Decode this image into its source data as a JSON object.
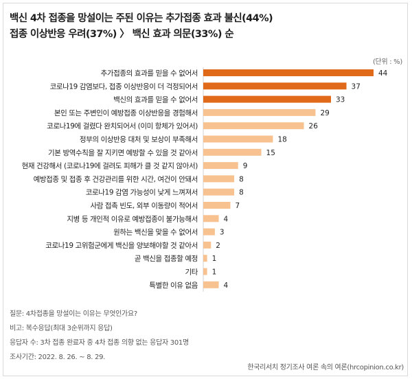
{
  "header": {
    "title_line1": "백신 4차 접종을 망설이는 주된 이유는 추가접종 효과 불신(44%)",
    "title_line2": "접종 이상반응 우려(37%) 〉 백신 효과 의문(33%) 순"
  },
  "unit_label": "(단위 : %)",
  "colors": {
    "dark_bar": "#e06a1a",
    "light_bar": "#f7c28f"
  },
  "chart_data": {
    "type": "bar",
    "orientation": "horizontal",
    "title": "백신 4차 접종을 망설이는 주된 이유는 추가접종 효과 불신(44%) 접종 이상반응 우려(37%) 〉 백신 효과 의문(33%) 순",
    "unit": "%",
    "xlim": [
      0,
      44
    ],
    "categories": [
      "추가접종의 효과를 믿을 수 없어서",
      "코로나19 감염보다, 접종 이상반응이 더 걱정되어서",
      "백신의 효과를 믿을 수 없어서",
      "본인 또는 주변인이 예방접종 이상반응을 경험해서",
      "코로나19에 걸렸다 완치되어서 (이미 항체가 있어서)",
      "정부의 이상반응 대처 및 보상이 부족해서",
      "기본 방역수칙을 잘 지키면 예방할 수 있을 것 같아서",
      "현재 건강해서 (코로나19에 걸려도 피해가 클 것 같지 않아서)",
      "예방접종 및 접종 후 건강관리를 위한 시간, 여건이 안돼서",
      "코로나19 감염 가능성이 낮게 느껴져서",
      "사람 접촉 빈도, 외부 이동량이 적어서",
      "지병 등 개인적 이유로 예방접종이 불가능해서",
      "원하는 백신을 맞을 수 없어서",
      "코로나19 고위험군에게 백신을 양보해야할 것 같아서",
      "곧 백신을 접종할 예정",
      "기타",
      "특별한 이유 없음"
    ],
    "values": [
      44,
      37,
      33,
      29,
      26,
      18,
      15,
      9,
      8,
      8,
      7,
      4,
      3,
      2,
      1,
      1,
      4
    ],
    "highlighted": [
      true,
      true,
      true,
      false,
      false,
      false,
      false,
      false,
      false,
      false,
      false,
      false,
      false,
      false,
      false,
      false,
      false
    ]
  },
  "notes": {
    "question": "질문: 4차접종을 망설이는 이유는 무엇인가요?",
    "remark": "비고: 복수응답(최대 3순위까지 응답)",
    "respondents": "응답자 수: 3차 접종 완료자 중 4차 접종 의향 없는 응답자 301명",
    "period": "조사기간: 2022. 8. 26. ~ 8. 29."
  },
  "source": "한국리서치 정기조사 여론 속의 여론(hrcopinion.co.kr)"
}
